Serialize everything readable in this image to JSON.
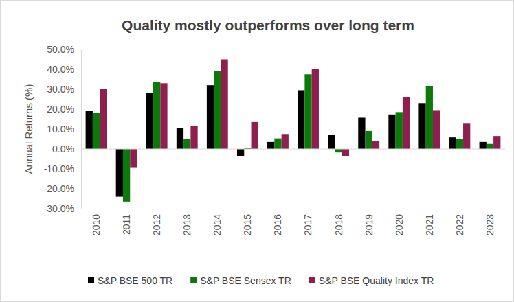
{
  "chart_data": {
    "type": "bar",
    "title": "Quality mostly outperforms over long term",
    "y_label": "Annual Returns (%)",
    "categories": [
      "2010",
      "2011",
      "2012",
      "2013",
      "2014",
      "2015",
      "2016",
      "2017",
      "2018",
      "2019",
      "2020",
      "2021",
      "2022",
      "2023"
    ],
    "series": [
      {
        "name": "S&P BSE 500 TR",
        "color": "#000000",
        "values": [
          19,
          -24,
          28,
          10.5,
          32,
          -3.5,
          3.5,
          29.5,
          7.2,
          15.7,
          17.3,
          23,
          5.8,
          3.5
        ]
      },
      {
        "name": "S&P BSE Sensex TR",
        "color": "#0b7a0b",
        "values": [
          18,
          -26.5,
          33.5,
          5,
          39,
          0.5,
          5.3,
          37.5,
          -1.8,
          9,
          18.5,
          31.5,
          5,
          2.5
        ]
      },
      {
        "name": "S&P BSE Quality Index TR",
        "color": "#8e1f4f",
        "values": [
          30,
          -9.5,
          33,
          11.5,
          45,
          13.5,
          7.5,
          40,
          -3.7,
          4,
          26,
          19.5,
          13,
          6.5
        ]
      }
    ],
    "ylim": [
      -30,
      50
    ],
    "yticks": [
      {
        "value": -30,
        "label": "-30.0%"
      },
      {
        "value": -20,
        "label": "-20.0%"
      },
      {
        "value": -10,
        "label": "-10.0%"
      },
      {
        "value": 0,
        "label": "0.0%"
      },
      {
        "value": 10,
        "label": "10.0%"
      },
      {
        "value": 20,
        "label": "20.0%"
      },
      {
        "value": 30,
        "label": "30.0%"
      },
      {
        "value": 40,
        "label": "40.0%"
      },
      {
        "value": 50,
        "label": "50.0%"
      }
    ],
    "grid": false,
    "legend": "bottom"
  }
}
